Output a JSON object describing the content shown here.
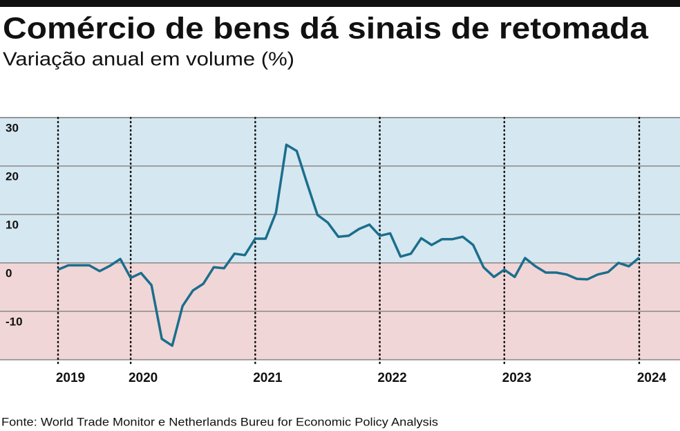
{
  "chart_data": {
    "type": "line",
    "title": "Comércio de bens dá sinais de retomada",
    "subtitle": "Variação anual em volume (%)",
    "source": "Fonte: World Trade Monitor e Netherlands Bureu for Economic Policy Analysis",
    "categories": [
      "2019",
      null,
      null,
      null,
      null,
      null,
      null,
      "2020",
      null,
      null,
      null,
      null,
      null,
      null,
      null,
      null,
      null,
      null,
      null,
      "2021",
      null,
      null,
      null,
      null,
      null,
      null,
      null,
      null,
      null,
      null,
      null,
      "2022",
      null,
      null,
      null,
      null,
      null,
      null,
      null,
      null,
      null,
      null,
      null,
      "2023",
      null,
      null,
      null,
      null,
      null,
      null,
      null,
      null,
      null,
      null,
      null,
      null,
      "2024"
    ],
    "series": [
      {
        "name": "Variação anual em volume",
        "color": "#1b6e8c",
        "values": [
          -1.4,
          -0.5,
          -0.5,
          -0.5,
          -1.7,
          -0.6,
          0.8,
          -3.1,
          -2.1,
          -4.6,
          -15.7,
          -17.1,
          -8.9,
          -5.7,
          -4.3,
          -0.9,
          -1.1,
          1.9,
          1.6,
          5.0,
          5.0,
          10.4,
          24.4,
          23.1,
          16.4,
          9.9,
          8.3,
          5.4,
          5.6,
          7.0,
          7.9,
          5.6,
          6.1,
          1.3,
          1.9,
          5.1,
          3.7,
          4.9,
          4.9,
          5.4,
          3.7,
          -0.9,
          -2.9,
          -1.4,
          -2.9,
          1.0,
          -0.7,
          -2.0,
          -2.0,
          -2.4,
          -3.3,
          -3.4,
          -2.4,
          -1.9,
          0,
          -0.7,
          1.1
        ]
      }
    ],
    "ylim": [
      -20,
      30
    ],
    "yticks": [
      -10,
      0,
      10,
      20,
      30
    ],
    "grid": true,
    "positive_color": "#d5e7f0",
    "negative_color": "#f1d6d7"
  }
}
